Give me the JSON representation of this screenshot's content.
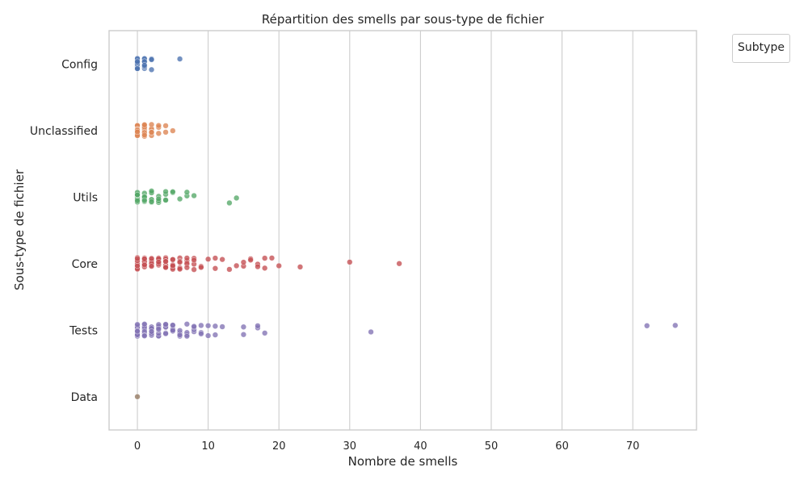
{
  "chart_data": {
    "type": "scatter",
    "title": "Répartition des smells par sous-type de fichier",
    "xlabel": "Nombre de smells",
    "ylabel": "Sous-type de fichier",
    "legend": {
      "title": "Subtype",
      "placement": "outside top-right",
      "entries": []
    },
    "xlim": [
      -4,
      79
    ],
    "x_ticks": [
      0,
      10,
      20,
      30,
      40,
      50,
      60,
      70
    ],
    "categories": [
      "Config",
      "Unclassified",
      "Utils",
      "Core",
      "Tests",
      "Data"
    ],
    "grid": "vertical",
    "series": [
      {
        "category": "Config",
        "color": "#4C72B0",
        "values": [
          0,
          0,
          0,
          0,
          0,
          0,
          0,
          0,
          0,
          0,
          1,
          1,
          1,
          1,
          1,
          1,
          1,
          1,
          1,
          2,
          2,
          2,
          6
        ]
      },
      {
        "category": "Unclassified",
        "color": "#DD8452",
        "values": [
          0,
          0,
          0,
          0,
          0,
          0,
          0,
          0,
          0,
          0,
          0,
          1,
          1,
          1,
          1,
          1,
          1,
          1,
          1,
          1,
          1,
          2,
          2,
          2,
          2,
          2,
          2,
          3,
          3,
          3,
          4,
          4,
          5
        ]
      },
      {
        "category": "Utils",
        "color": "#55A868",
        "values": [
          0,
          0,
          0,
          0,
          0,
          0,
          0,
          0,
          0,
          0,
          0,
          1,
          1,
          1,
          1,
          1,
          1,
          1,
          1,
          1,
          1,
          1,
          2,
          2,
          2,
          2,
          2,
          2,
          2,
          3,
          3,
          3,
          3,
          3,
          4,
          4,
          4,
          4,
          5,
          5,
          6,
          7,
          7,
          8,
          13,
          14
        ]
      },
      {
        "category": "Core",
        "color": "#C44E52",
        "values": [
          0,
          0,
          0,
          0,
          0,
          0,
          0,
          0,
          0,
          0,
          0,
          0,
          0,
          1,
          1,
          1,
          1,
          1,
          1,
          1,
          1,
          1,
          1,
          1,
          1,
          1,
          2,
          2,
          2,
          2,
          2,
          2,
          2,
          2,
          2,
          2,
          2,
          2,
          3,
          3,
          3,
          3,
          3,
          3,
          3,
          3,
          3,
          3,
          4,
          4,
          4,
          4,
          4,
          4,
          4,
          4,
          5,
          5,
          5,
          5,
          5,
          5,
          5,
          6,
          6,
          6,
          6,
          6,
          6,
          7,
          7,
          7,
          7,
          7,
          8,
          8,
          8,
          8,
          9,
          9,
          10,
          11,
          11,
          12,
          13,
          14,
          15,
          15,
          16,
          16,
          17,
          17,
          18,
          18,
          19,
          20,
          23,
          30,
          37
        ]
      },
      {
        "category": "Tests",
        "color": "#8172B3",
        "values": [
          0,
          0,
          0,
          0,
          0,
          0,
          0,
          0,
          0,
          0,
          0,
          0,
          1,
          1,
          1,
          1,
          1,
          1,
          1,
          1,
          1,
          1,
          1,
          1,
          2,
          2,
          2,
          2,
          2,
          2,
          2,
          2,
          2,
          2,
          3,
          3,
          3,
          3,
          3,
          3,
          3,
          3,
          3,
          4,
          4,
          4,
          4,
          4,
          4,
          4,
          5,
          5,
          5,
          5,
          5,
          5,
          6,
          6,
          6,
          6,
          7,
          7,
          7,
          7,
          8,
          8,
          8,
          8,
          9,
          9,
          9,
          10,
          10,
          11,
          11,
          12,
          15,
          15,
          17,
          17,
          18,
          33,
          72,
          76
        ]
      },
      {
        "category": "Data",
        "color": "#937860",
        "values": [
          0
        ]
      }
    ]
  }
}
